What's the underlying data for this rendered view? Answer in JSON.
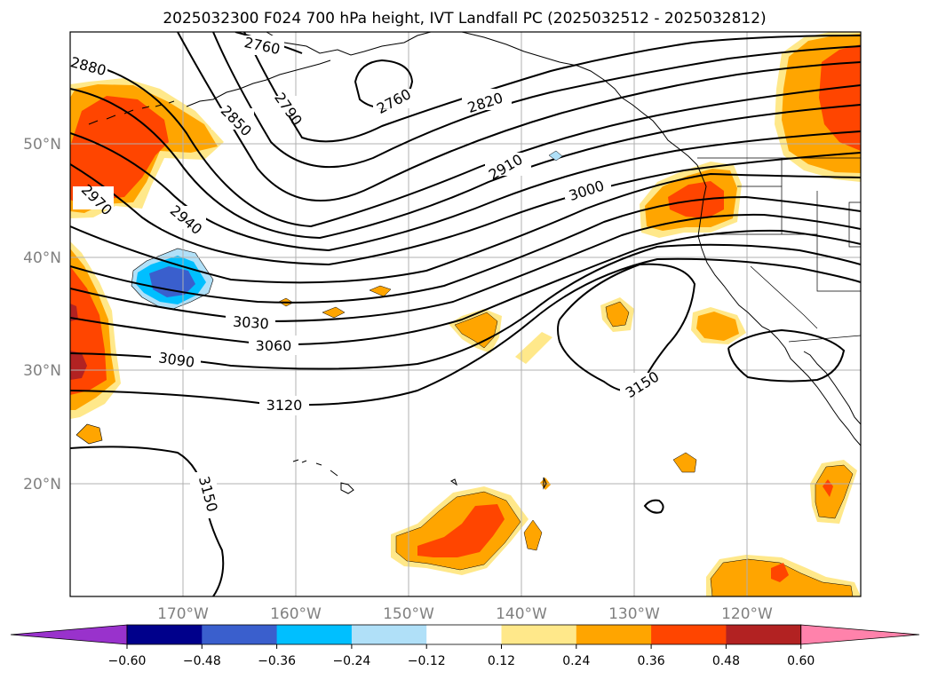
{
  "title": "2025032300 F024 700 hPa height, IVT Landfall PC (2025032512 - 2025032812)",
  "map": {
    "lat_labels": [
      "50°N",
      "40°N",
      "30°N",
      "20°N"
    ],
    "lon_labels": [
      "170°W",
      "160°W",
      "150°W",
      "140°W",
      "130°W",
      "120°W"
    ],
    "contour_labels": [
      "2760",
      "2760",
      "2790",
      "2820",
      "2850",
      "2880",
      "2910",
      "2940",
      "2970",
      "3000",
      "3030",
      "3060",
      "3090",
      "3120",
      "3150",
      "3150"
    ]
  },
  "colorbar": {
    "ticks": [
      "−0.60",
      "−0.48",
      "−0.36",
      "−0.24",
      "−0.12",
      "0.12",
      "0.24",
      "0.36",
      "0.48",
      "0.60"
    ],
    "colors": [
      "#9932cc",
      "#00008b",
      "#3a5fcd",
      "#00bfff",
      "#b0e0f8",
      "#ffffff",
      "#ffe88a",
      "#ffa500",
      "#ff4500",
      "#b22222",
      "#ff82ab"
    ]
  },
  "colors": {
    "pos_weak": "#ffe88a",
    "pos_mid": "#ffa500",
    "pos_strong": "#ff4500",
    "pos_max": "#b22222",
    "neg_weak": "#b0e0f8",
    "neg_mid": "#00bfff",
    "neg_strong": "#3a5fcd"
  }
}
